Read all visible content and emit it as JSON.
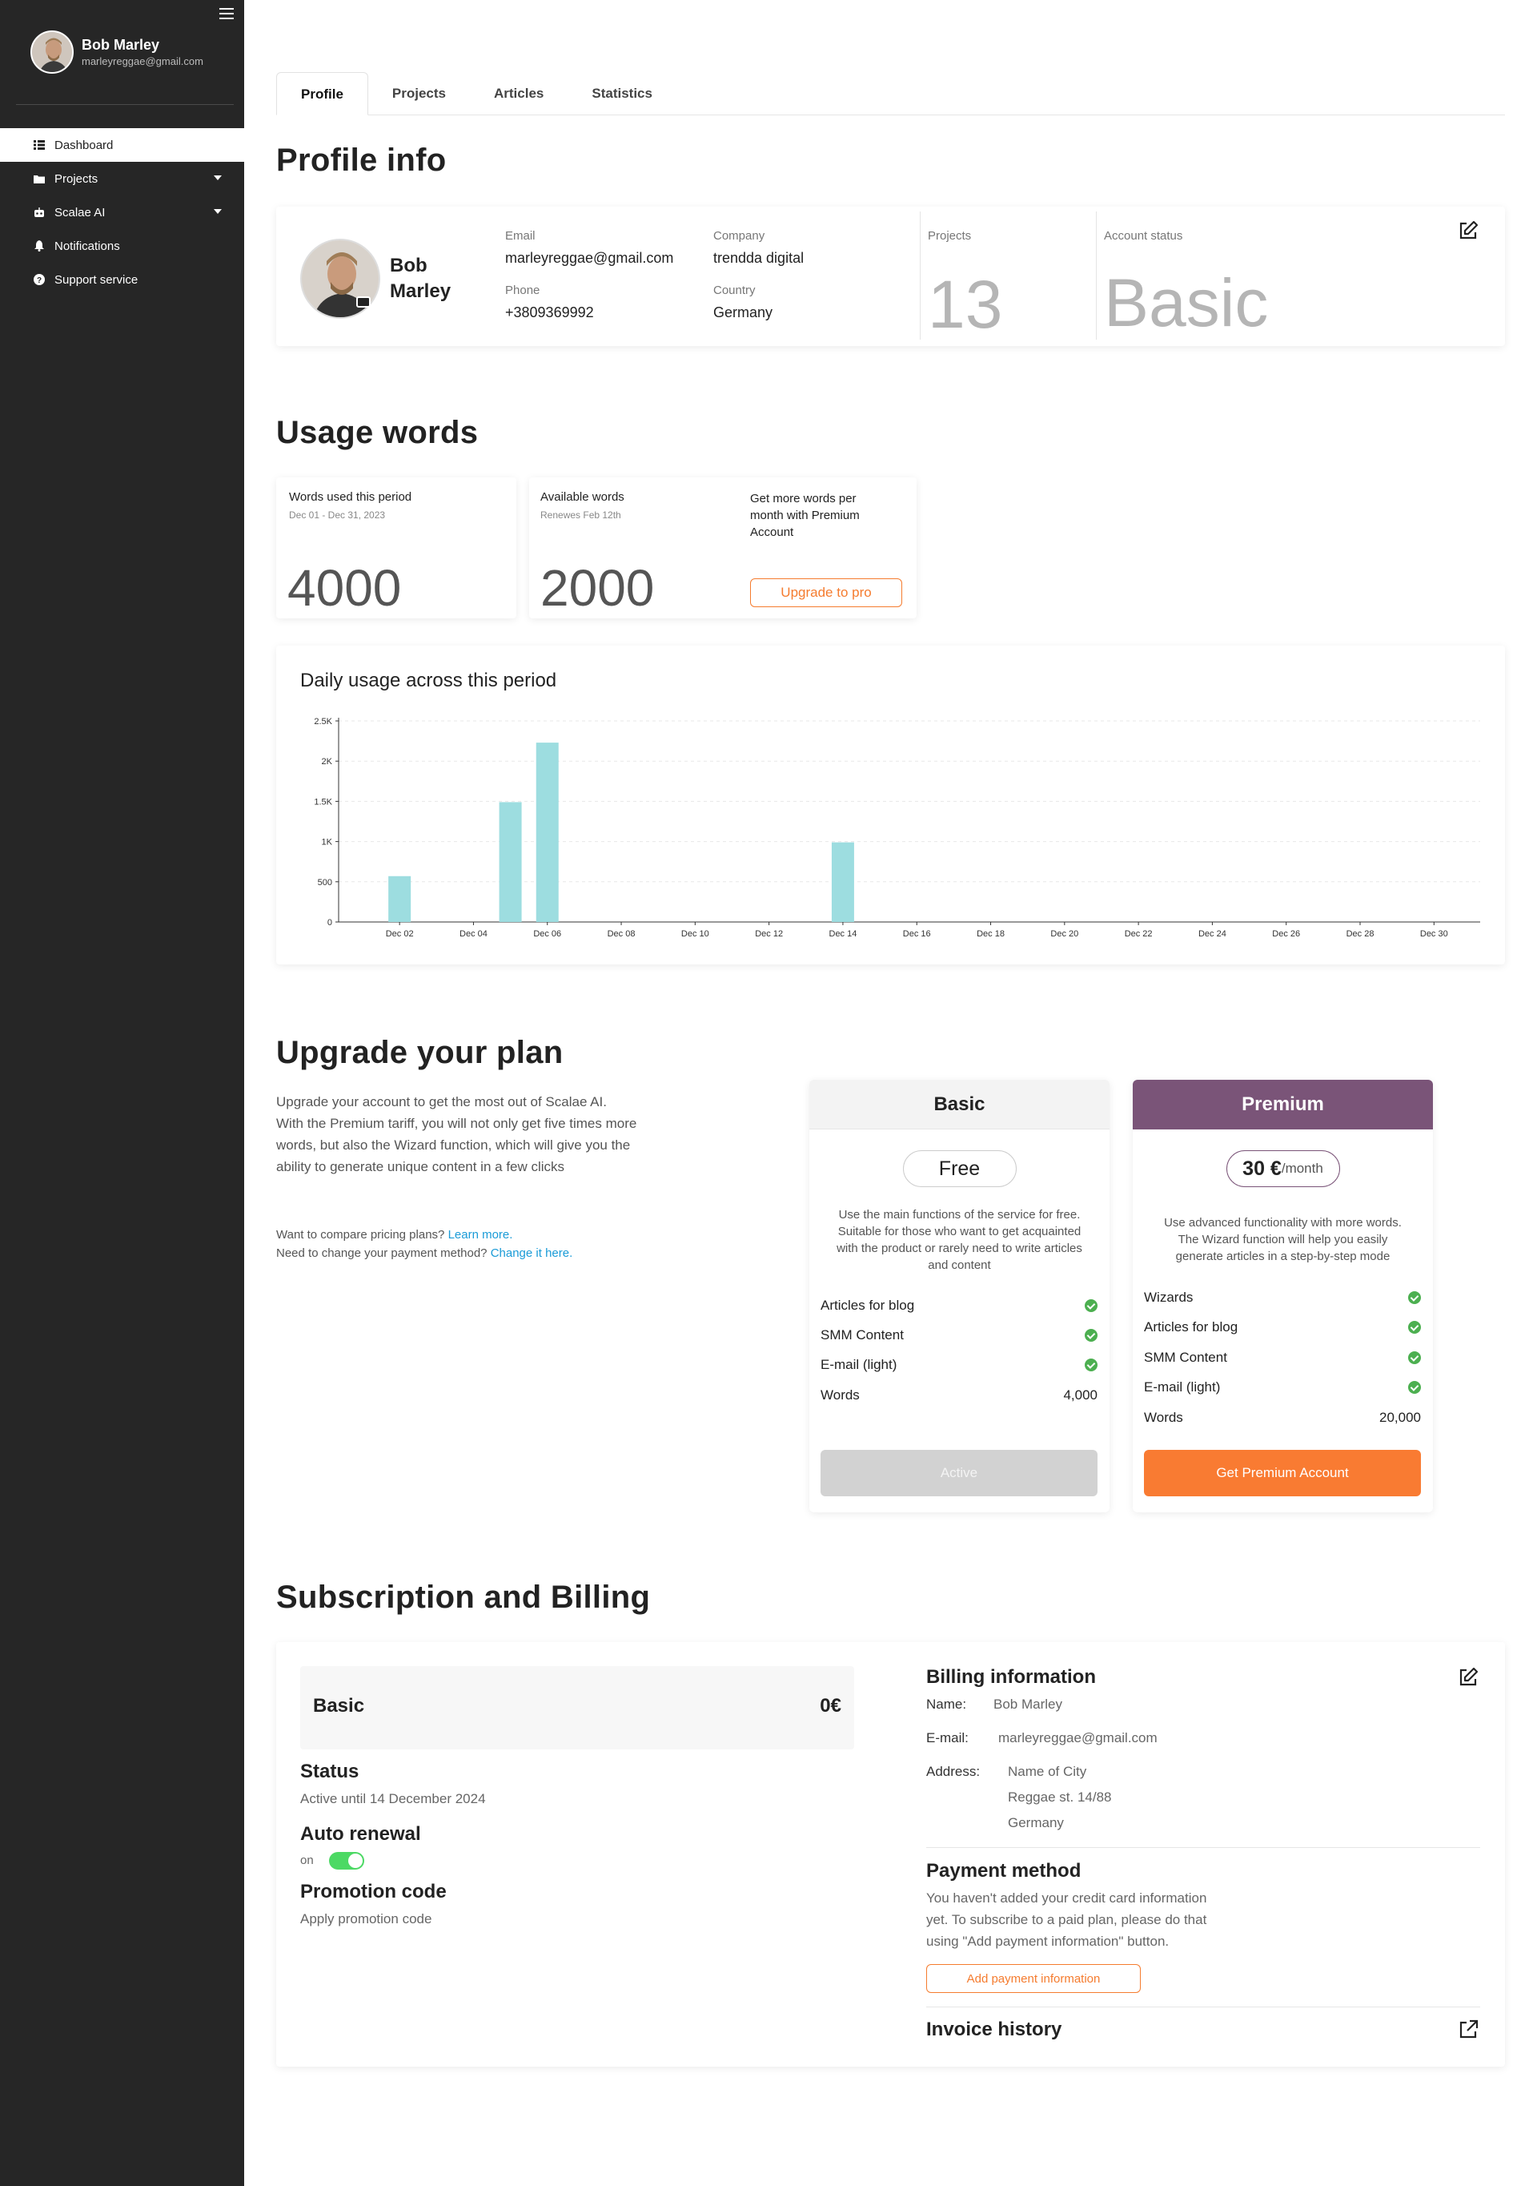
{
  "sidebar": {
    "user_name": "Bob Marley",
    "user_email": "marleyreggae@gmail.com",
    "items": [
      {
        "label": "Dashboard"
      },
      {
        "label": "Projects"
      },
      {
        "label": "Scalae AI"
      },
      {
        "label": "Notifications"
      },
      {
        "label": "Support service"
      }
    ]
  },
  "tabs": [
    "Profile",
    "Projects",
    "Articles",
    "Statistics"
  ],
  "profile": {
    "heading": "Profile info",
    "name": "Bob Marley",
    "email_label": "Email",
    "email": "marleyreggae@gmail.com",
    "phone_label": "Phone",
    "phone": "+3809369992",
    "company_label": "Company",
    "company": "trendda digital",
    "country_label": "Country",
    "country": "Germany",
    "projects_label": "Projects",
    "projects": "13",
    "status_label": "Account status",
    "status": "Basic"
  },
  "usage": {
    "heading": "Usage words",
    "used_title": "Words used this period",
    "used_period": "Dec 01 - Dec 31, 2023",
    "used_value": "4000",
    "available_title": "Available words",
    "available_sub": "Renewes Feb 12th",
    "available_value": "2000",
    "promo_text": "Get more words per month with Premium Account",
    "upgrade_button": "Upgrade to pro"
  },
  "chart_data": {
    "type": "bar",
    "title": "Daily usage across this period",
    "xlabel": "",
    "ylabel": "",
    "ylim": [
      0,
      2500
    ],
    "y_ticks": [
      "0",
      "500",
      "1K",
      "1.5K",
      "2K",
      "2.5K"
    ],
    "x_tick_labels": [
      "Dec 02",
      "Dec 04",
      "Dec 06",
      "Dec 08",
      "Dec 10",
      "Dec 12",
      "Dec 14",
      "Dec 16",
      "Dec 18",
      "Dec 20",
      "Dec 22",
      "Dec 24",
      "Dec 26",
      "Dec 28",
      "Dec 30"
    ],
    "categories": [
      "Dec 02",
      "Dec 05",
      "Dec 06",
      "Dec 14"
    ],
    "values": [
      570,
      1490,
      2230,
      990
    ],
    "color": "#9ddde0"
  },
  "upgrade": {
    "heading": "Upgrade your plan",
    "paragraph_lines": [
      "Upgrade your account to get the most out of Scalae AI.",
      "With the Premium tariff, you will not only get five times more",
      "words, but also the Wizard function, which will give you the",
      "ability to generate unique content in a few clicks"
    ],
    "compare_text": "Want to compare pricing plans?",
    "compare_link": "Learn more.",
    "payment_text": "Need to change your payment method?",
    "payment_link": "Change it here.",
    "basic": {
      "name": "Basic",
      "price": "Free",
      "desc": "Use the main functions of the service for free. Suitable for those who want to get acquainted with the product or rarely need to write articles and content",
      "features": [
        "Articles for blog",
        "SMM Content",
        "E-mail (light)"
      ],
      "words_label": "Words",
      "words_value": "4,000",
      "button": "Active"
    },
    "premium": {
      "name": "Premium",
      "price": "30 €",
      "price_unit": "/month",
      "desc": "Use advanced functionality with more words. The Wizard function will help you easily generate articles in a step-by-step mode",
      "features": [
        "Wizards",
        "Articles for blog",
        "SMM Content",
        "E-mail (light)"
      ],
      "words_label": "Words",
      "words_value": "20,000",
      "button": "Get Premium Account"
    }
  },
  "billing": {
    "heading": "Subscription and Billing",
    "plan_name": "Basic",
    "plan_price": "0€",
    "status_label": "Status",
    "status_value": "Active until 14 December 2024",
    "auto_renewal_label": "Auto renewal",
    "auto_renewal_state": "on",
    "promo_label": "Promotion code",
    "promo_value": "Apply promotion code",
    "info_heading": "Billing information",
    "name_label": "Name:",
    "name_value": "Bob Marley",
    "email_label": "E-mail:",
    "email_value": "marleyreggae@gmail.com",
    "address_label": "Address:",
    "address_lines": [
      "Name of City",
      "Reggae st. 14/88",
      "Germany"
    ],
    "payment_heading": "Payment method",
    "payment_lines": [
      "You haven't added your credit card information",
      "yet. To subscribe to a paid plan, please do that",
      "using \"Add payment information\" button."
    ],
    "add_payment_button": "Add payment information",
    "invoice_heading": "Invoice history"
  }
}
